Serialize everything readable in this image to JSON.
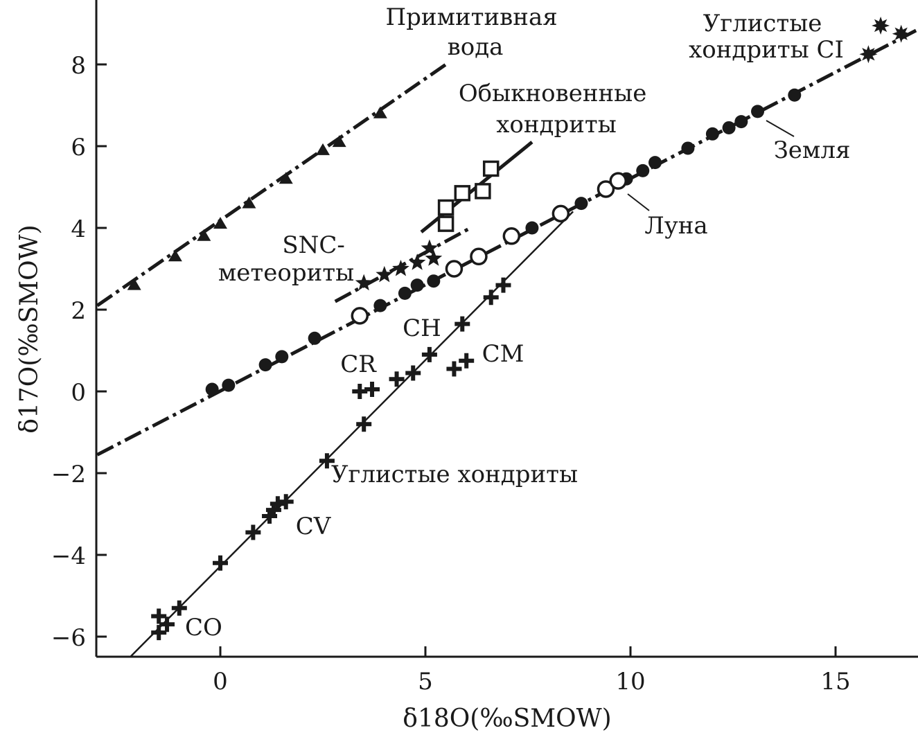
{
  "chart_data": {
    "type": "scatter",
    "xlabel": "δ18O(‰SMOW)",
    "ylabel": "δ17O(‰SMOW)",
    "xlim": [
      -3,
      17
    ],
    "ylim": [
      -6.5,
      9.5
    ],
    "xticks": [
      0,
      5,
      10,
      15
    ],
    "xtick_labels": [
      "0",
      "5",
      "10",
      "15"
    ],
    "yticks": [
      -6,
      -4,
      -2,
      0,
      2,
      4,
      6,
      8
    ],
    "ytick_labels": [
      "−6",
      "−4",
      "−2",
      "0",
      "2",
      "4",
      "6",
      "8"
    ],
    "lines": [
      {
        "name": "primitive-water-line",
        "style": "dashdot",
        "width": 5,
        "from": [
          -3,
          2.1
        ],
        "to": [
          5.5,
          8.0
        ]
      },
      {
        "name": "ordinary-chondrites-line",
        "style": "solid",
        "width": 5,
        "from": [
          4.9,
          3.9
        ],
        "to": [
          7.6,
          6.1
        ]
      },
      {
        "name": "snc-line",
        "style": "dashdot",
        "width": 5,
        "from": [
          2.8,
          2.2
        ],
        "to": [
          6.1,
          4.0
        ]
      },
      {
        "name": "terrestrial-fractionation-line",
        "style": "dashdot",
        "width": 5,
        "from": [
          -3,
          -1.55
        ],
        "to": [
          17,
          8.85
        ]
      },
      {
        "name": "carbonaceous-chondrite-line",
        "style": "solid",
        "width": 2.5,
        "from": [
          -2.2,
          -6.5
        ],
        "to": [
          8.6,
          4.4
        ]
      }
    ],
    "series": [
      {
        "name": "Примитивная вода",
        "marker": "triangle",
        "points": [
          [
            -2.1,
            2.6
          ],
          [
            -1.1,
            3.3
          ],
          [
            -0.4,
            3.8
          ],
          [
            0.0,
            4.1
          ],
          [
            0.7,
            4.6
          ],
          [
            1.6,
            5.2
          ],
          [
            2.5,
            5.9
          ],
          [
            2.9,
            6.1
          ],
          [
            3.9,
            6.8
          ]
        ]
      },
      {
        "name": "Обыкновенные хондриты",
        "marker": "open-square",
        "points": [
          [
            5.5,
            4.1
          ],
          [
            5.5,
            4.5
          ],
          [
            5.9,
            4.85
          ],
          [
            6.4,
            4.9
          ],
          [
            6.6,
            5.45
          ]
        ]
      },
      {
        "name": "SNC-метеориты",
        "marker": "star",
        "points": [
          [
            3.5,
            2.65
          ],
          [
            4.0,
            2.85
          ],
          [
            4.4,
            3.0
          ],
          [
            4.8,
            3.15
          ],
          [
            5.1,
            3.5
          ],
          [
            5.2,
            3.25
          ]
        ]
      },
      {
        "name": "Земля",
        "marker": "filled-circle",
        "points": [
          [
            -0.2,
            0.05
          ],
          [
            0.2,
            0.15
          ],
          [
            1.1,
            0.65
          ],
          [
            1.5,
            0.85
          ],
          [
            2.3,
            1.3
          ],
          [
            3.9,
            2.1
          ],
          [
            4.5,
            2.4
          ],
          [
            4.8,
            2.6
          ],
          [
            5.2,
            2.7
          ],
          [
            7.6,
            4.0
          ],
          [
            8.8,
            4.6
          ],
          [
            9.9,
            5.2
          ],
          [
            10.3,
            5.4
          ],
          [
            10.6,
            5.6
          ],
          [
            11.4,
            5.95
          ],
          [
            12.0,
            6.3
          ],
          [
            12.4,
            6.45
          ],
          [
            12.7,
            6.6
          ],
          [
            13.1,
            6.85
          ],
          [
            14.0,
            7.25
          ]
        ]
      },
      {
        "name": "Луна",
        "marker": "open-circle",
        "points": [
          [
            3.4,
            1.85
          ],
          [
            5.7,
            3.0
          ],
          [
            6.3,
            3.3
          ],
          [
            7.1,
            3.8
          ],
          [
            8.3,
            4.35
          ],
          [
            9.4,
            4.95
          ],
          [
            9.7,
            5.15
          ]
        ]
      },
      {
        "name": "Углистые хондриты",
        "marker": "cross",
        "points": [
          [
            -1.5,
            -5.9
          ],
          [
            -1.5,
            -5.5
          ],
          [
            -1.3,
            -5.7
          ],
          [
            -1.0,
            -5.3
          ],
          [
            0.0,
            -4.2
          ],
          [
            0.8,
            -3.45
          ],
          [
            1.2,
            -3.05
          ],
          [
            1.3,
            -2.9
          ],
          [
            1.4,
            -2.75
          ],
          [
            1.6,
            -2.7
          ],
          [
            2.6,
            -1.7
          ],
          [
            3.5,
            -0.8
          ],
          [
            3.4,
            0.0
          ],
          [
            3.7,
            0.05
          ],
          [
            4.3,
            0.3
          ],
          [
            4.7,
            0.45
          ],
          [
            5.1,
            0.9
          ],
          [
            5.7,
            0.55
          ],
          [
            6.0,
            0.75
          ],
          [
            5.9,
            1.65
          ],
          [
            6.6,
            2.3
          ],
          [
            6.9,
            2.6
          ]
        ]
      },
      {
        "name": "Углистые хондриты CI",
        "marker": "sunburst",
        "points": [
          [
            15.8,
            8.25
          ],
          [
            16.1,
            8.95
          ],
          [
            16.6,
            8.75
          ]
        ]
      }
    ],
    "annotations": [
      {
        "name": "primitive-water",
        "lines": [
          "Примитивная",
          "вода"
        ]
      },
      {
        "name": "ordinary-chondrites",
        "lines": [
          "Обыкновенные",
          "хондриты"
        ]
      },
      {
        "name": "snc-meteorites",
        "lines": [
          "SNC-",
          "метеориты"
        ]
      },
      {
        "name": "ci-chondrites",
        "lines": [
          "Углистые",
          "хондриты CI"
        ]
      },
      {
        "name": "earth",
        "lines": [
          "Земля"
        ]
      },
      {
        "name": "moon",
        "lines": [
          "Луна"
        ]
      },
      {
        "name": "carbonaceous-chondrites",
        "lines": [
          "Углистые хондриты"
        ]
      },
      {
        "name": "ch",
        "lines": [
          "CH"
        ]
      },
      {
        "name": "cr",
        "lines": [
          "CR"
        ]
      },
      {
        "name": "cm",
        "lines": [
          "CM"
        ]
      },
      {
        "name": "cv",
        "lines": [
          "CV"
        ]
      },
      {
        "name": "co",
        "lines": [
          "CO"
        ]
      }
    ]
  }
}
